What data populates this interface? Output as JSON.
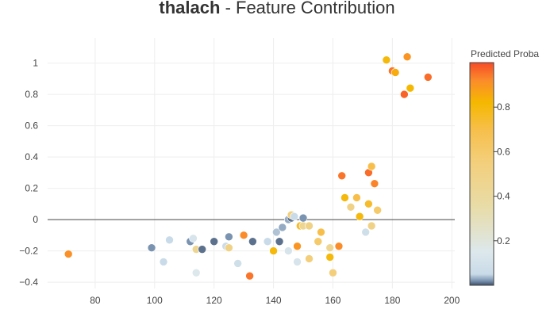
{
  "title": {
    "feature": "thalach",
    "suffix": " - Feature Contribution"
  },
  "colorbar": {
    "title": "Predicted Proba",
    "range": [
      0.0,
      1.0
    ],
    "tick_values": [
      0.2,
      0.4,
      0.6,
      0.8
    ],
    "tick_labels": [
      "0.2",
      "0.4",
      "0.6",
      "0.8"
    ],
    "colorscale": [
      [
        0.0,
        "#3d4f6a"
      ],
      [
        0.02,
        "#7a93b0"
      ],
      [
        0.05,
        "#c9dbe8"
      ],
      [
        0.15,
        "#dde8ec"
      ],
      [
        0.35,
        "#e8dca8"
      ],
      [
        0.55,
        "#f3cf7c"
      ],
      [
        0.7,
        "#f7bf4a"
      ],
      [
        0.82,
        "#f5b800"
      ],
      [
        0.92,
        "#fb8c2a"
      ],
      [
        1.0,
        "#f74b27"
      ]
    ]
  },
  "chart_data": {
    "type": "scatter",
    "title": "thalach - Feature Contribution",
    "xlabel": "",
    "ylabel": "",
    "xlim": [
      64,
      201
    ],
    "ylim": [
      -0.44,
      1.16
    ],
    "x_ticks": [
      80,
      100,
      120,
      140,
      160,
      180,
      200
    ],
    "y_ticks": [
      -0.4,
      -0.2,
      0,
      0.2,
      0.4,
      0.6,
      0.8,
      1
    ],
    "y_tick_labels": [
      "−0.4",
      "−0.2",
      "0",
      "0.2",
      "0.4",
      "0.6",
      "0.8",
      "1"
    ],
    "grid": true,
    "zero_line": true,
    "points": [
      {
        "x": 71,
        "y": -0.22,
        "p": 0.91
      },
      {
        "x": 99,
        "y": -0.18,
        "p": 0.02
      },
      {
        "x": 103,
        "y": -0.27,
        "p": 0.05
      },
      {
        "x": 105,
        "y": -0.13,
        "p": 0.05
      },
      {
        "x": 112,
        "y": -0.14,
        "p": 0.02
      },
      {
        "x": 113,
        "y": -0.12,
        "p": 0.12
      },
      {
        "x": 114,
        "y": -0.34,
        "p": 0.15
      },
      {
        "x": 114,
        "y": -0.19,
        "p": 0.45
      },
      {
        "x": 116,
        "y": -0.19,
        "p": 0.01
      },
      {
        "x": 120,
        "y": -0.14,
        "p": 0.01
      },
      {
        "x": 124,
        "y": -0.17,
        "p": 0.06
      },
      {
        "x": 125,
        "y": -0.18,
        "p": 0.5
      },
      {
        "x": 125,
        "y": -0.11,
        "p": 0.02
      },
      {
        "x": 128,
        "y": -0.28,
        "p": 0.08
      },
      {
        "x": 130,
        "y": -0.1,
        "p": 0.92
      },
      {
        "x": 132,
        "y": -0.36,
        "p": 0.95
      },
      {
        "x": 133,
        "y": -0.14,
        "p": 0.01
      },
      {
        "x": 138,
        "y": -0.14,
        "p": 0.05
      },
      {
        "x": 140,
        "y": -0.2,
        "p": 0.8
      },
      {
        "x": 141,
        "y": -0.08,
        "p": 0.04
      },
      {
        "x": 142,
        "y": -0.14,
        "p": 0.01
      },
      {
        "x": 143,
        "y": -0.05,
        "p": 0.03
      },
      {
        "x": 145,
        "y": -0.2,
        "p": 0.12
      },
      {
        "x": 145,
        "y": 0.0,
        "p": 0.03
      },
      {
        "x": 146,
        "y": 0.01,
        "p": 0.01
      },
      {
        "x": 146,
        "y": 0.03,
        "p": 0.55
      },
      {
        "x": 147,
        "y": 0.02,
        "p": 0.05
      },
      {
        "x": 148,
        "y": -0.27,
        "p": 0.12
      },
      {
        "x": 148,
        "y": -0.17,
        "p": 0.9
      },
      {
        "x": 149,
        "y": -0.04,
        "p": 0.75
      },
      {
        "x": 150,
        "y": -0.04,
        "p": 0.45
      },
      {
        "x": 150,
        "y": 0.01,
        "p": 0.02
      },
      {
        "x": 152,
        "y": -0.25,
        "p": 0.55
      },
      {
        "x": 152,
        "y": -0.04,
        "p": 0.5
      },
      {
        "x": 155,
        "y": -0.14,
        "p": 0.6
      },
      {
        "x": 156,
        "y": -0.08,
        "p": 0.7
      },
      {
        "x": 159,
        "y": -0.18,
        "p": 0.45
      },
      {
        "x": 159,
        "y": -0.24,
        "p": 0.8
      },
      {
        "x": 160,
        "y": -0.34,
        "p": 0.55
      },
      {
        "x": 162,
        "y": -0.17,
        "p": 0.92
      },
      {
        "x": 163,
        "y": 0.28,
        "p": 0.95
      },
      {
        "x": 164,
        "y": 0.14,
        "p": 0.8
      },
      {
        "x": 166,
        "y": 0.08,
        "p": 0.5
      },
      {
        "x": 168,
        "y": 0.14,
        "p": 0.7
      },
      {
        "x": 169,
        "y": 0.02,
        "p": 0.8
      },
      {
        "x": 171,
        "y": -0.08,
        "p": 0.08
      },
      {
        "x": 172,
        "y": 0.1,
        "p": 0.75
      },
      {
        "x": 172,
        "y": 0.3,
        "p": 0.96
      },
      {
        "x": 173,
        "y": 0.34,
        "p": 0.7
      },
      {
        "x": 173,
        "y": -0.04,
        "p": 0.5
      },
      {
        "x": 174,
        "y": 0.23,
        "p": 0.93
      },
      {
        "x": 175,
        "y": 0.06,
        "p": 0.6
      },
      {
        "x": 178,
        "y": 1.02,
        "p": 0.8
      },
      {
        "x": 180,
        "y": 0.95,
        "p": 0.95
      },
      {
        "x": 181,
        "y": 0.94,
        "p": 0.85
      },
      {
        "x": 184,
        "y": 0.8,
        "p": 0.97
      },
      {
        "x": 185,
        "y": 1.04,
        "p": 0.9
      },
      {
        "x": 186,
        "y": 0.84,
        "p": 0.82
      },
      {
        "x": 192,
        "y": 0.91,
        "p": 0.96
      }
    ]
  }
}
